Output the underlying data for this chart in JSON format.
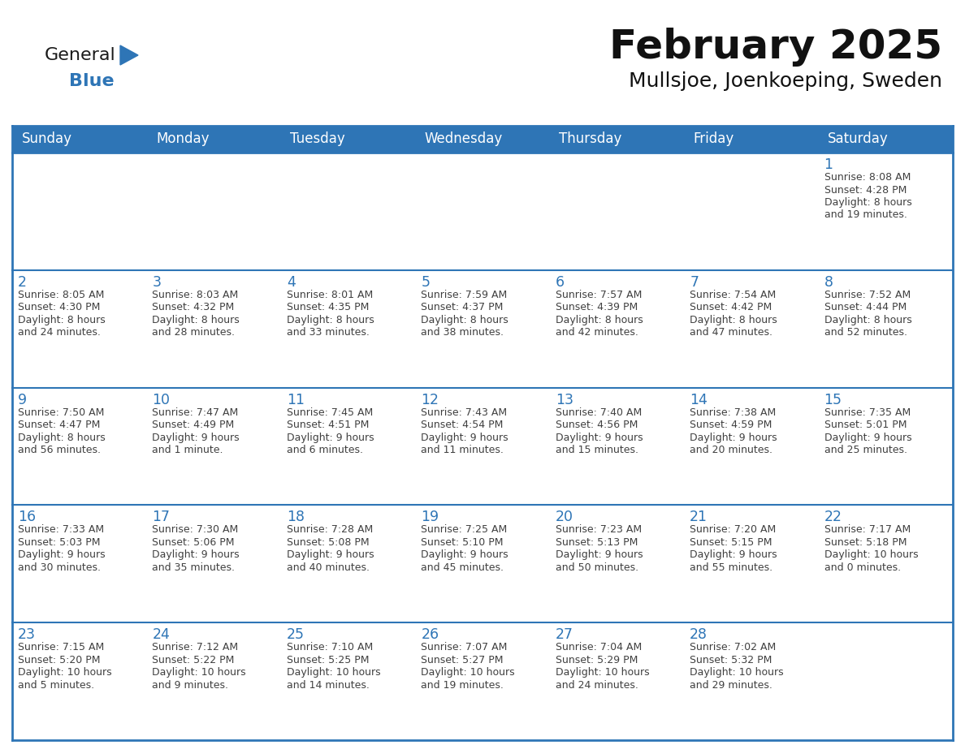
{
  "title": "February 2025",
  "subtitle": "Mullsjoe, Joenkoeping, Sweden",
  "days_of_week": [
    "Sunday",
    "Monday",
    "Tuesday",
    "Wednesday",
    "Thursday",
    "Friday",
    "Saturday"
  ],
  "header_bg": "#2E75B6",
  "header_text": "#FFFFFF",
  "cell_bg": "#FFFFFF",
  "row_divider_color": "#2E75B6",
  "day_number_color": "#2E75B6",
  "cell_text_color": "#404040",
  "title_color": "#111111",
  "subtitle_color": "#111111",
  "logo_general_color": "#1a1a1a",
  "logo_blue_color": "#2E75B6",
  "outer_border_color": "#2E75B6",
  "calendar_data": [
    [
      null,
      null,
      null,
      null,
      null,
      null,
      1
    ],
    [
      2,
      3,
      4,
      5,
      6,
      7,
      8
    ],
    [
      9,
      10,
      11,
      12,
      13,
      14,
      15
    ],
    [
      16,
      17,
      18,
      19,
      20,
      21,
      22
    ],
    [
      23,
      24,
      25,
      26,
      27,
      28,
      null
    ]
  ],
  "cell_info": {
    "1": {
      "sunrise": "8:08 AM",
      "sunset": "4:28 PM",
      "daylight": "8 hours and 19 minutes."
    },
    "2": {
      "sunrise": "8:05 AM",
      "sunset": "4:30 PM",
      "daylight": "8 hours and 24 minutes."
    },
    "3": {
      "sunrise": "8:03 AM",
      "sunset": "4:32 PM",
      "daylight": "8 hours and 28 minutes."
    },
    "4": {
      "sunrise": "8:01 AM",
      "sunset": "4:35 PM",
      "daylight": "8 hours and 33 minutes."
    },
    "5": {
      "sunrise": "7:59 AM",
      "sunset": "4:37 PM",
      "daylight": "8 hours and 38 minutes."
    },
    "6": {
      "sunrise": "7:57 AM",
      "sunset": "4:39 PM",
      "daylight": "8 hours and 42 minutes."
    },
    "7": {
      "sunrise": "7:54 AM",
      "sunset": "4:42 PM",
      "daylight": "8 hours and 47 minutes."
    },
    "8": {
      "sunrise": "7:52 AM",
      "sunset": "4:44 PM",
      "daylight": "8 hours and 52 minutes."
    },
    "9": {
      "sunrise": "7:50 AM",
      "sunset": "4:47 PM",
      "daylight": "8 hours and 56 minutes."
    },
    "10": {
      "sunrise": "7:47 AM",
      "sunset": "4:49 PM",
      "daylight": "9 hours and 1 minute."
    },
    "11": {
      "sunrise": "7:45 AM",
      "sunset": "4:51 PM",
      "daylight": "9 hours and 6 minutes."
    },
    "12": {
      "sunrise": "7:43 AM",
      "sunset": "4:54 PM",
      "daylight": "9 hours and 11 minutes."
    },
    "13": {
      "sunrise": "7:40 AM",
      "sunset": "4:56 PM",
      "daylight": "9 hours and 15 minutes."
    },
    "14": {
      "sunrise": "7:38 AM",
      "sunset": "4:59 PM",
      "daylight": "9 hours and 20 minutes."
    },
    "15": {
      "sunrise": "7:35 AM",
      "sunset": "5:01 PM",
      "daylight": "9 hours and 25 minutes."
    },
    "16": {
      "sunrise": "7:33 AM",
      "sunset": "5:03 PM",
      "daylight": "9 hours and 30 minutes."
    },
    "17": {
      "sunrise": "7:30 AM",
      "sunset": "5:06 PM",
      "daylight": "9 hours and 35 minutes."
    },
    "18": {
      "sunrise": "7:28 AM",
      "sunset": "5:08 PM",
      "daylight": "9 hours and 40 minutes."
    },
    "19": {
      "sunrise": "7:25 AM",
      "sunset": "5:10 PM",
      "daylight": "9 hours and 45 minutes."
    },
    "20": {
      "sunrise": "7:23 AM",
      "sunset": "5:13 PM",
      "daylight": "9 hours and 50 minutes."
    },
    "21": {
      "sunrise": "7:20 AM",
      "sunset": "5:15 PM",
      "daylight": "9 hours and 55 minutes."
    },
    "22": {
      "sunrise": "7:17 AM",
      "sunset": "5:18 PM",
      "daylight": "10 hours and 0 minutes."
    },
    "23": {
      "sunrise": "7:15 AM",
      "sunset": "5:20 PM",
      "daylight": "10 hours and 5 minutes."
    },
    "24": {
      "sunrise": "7:12 AM",
      "sunset": "5:22 PM",
      "daylight": "10 hours and 9 minutes."
    },
    "25": {
      "sunrise": "7:10 AM",
      "sunset": "5:25 PM",
      "daylight": "10 hours and 14 minutes."
    },
    "26": {
      "sunrise": "7:07 AM",
      "sunset": "5:27 PM",
      "daylight": "10 hours and 19 minutes."
    },
    "27": {
      "sunrise": "7:04 AM",
      "sunset": "5:29 PM",
      "daylight": "10 hours and 24 minutes."
    },
    "28": {
      "sunrise": "7:02 AM",
      "sunset": "5:32 PM",
      "daylight": "10 hours and 29 minutes."
    }
  }
}
